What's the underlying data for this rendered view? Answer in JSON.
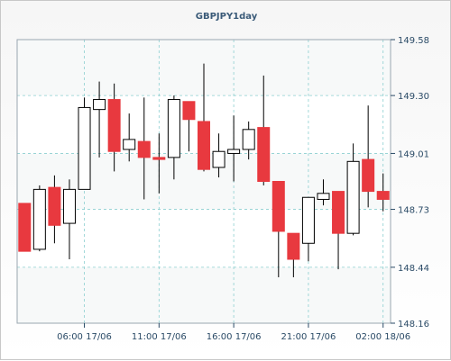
{
  "chart_data": {
    "type": "candlestick",
    "title": "GBPJPY1day",
    "ylim": [
      148.16,
      149.58
    ],
    "y_ticks": [
      "149.58",
      "149.30",
      "149.01",
      "148.73",
      "148.44",
      "148.16"
    ],
    "y_tick_values": [
      149.58,
      149.3,
      149.01,
      148.73,
      148.44,
      148.16
    ],
    "x_ticks": [
      "06:00 17/06",
      "11:00 17/06",
      "16:00 17/06",
      "21:00 17/06",
      "02:00 18/06"
    ],
    "x_tick_index": [
      4.5,
      9.5,
      14.5,
      19.5,
      24.5
    ],
    "grid": true,
    "colors": {
      "up": "#ffffff",
      "down": "#e8393f",
      "frame": "#9aa6b0",
      "grid": "#8ccfd0"
    },
    "candles": [
      {
        "o": 148.76,
        "h": 148.76,
        "l": 148.52,
        "c": 148.52
      },
      {
        "o": 148.53,
        "h": 148.85,
        "l": 148.52,
        "c": 148.83
      },
      {
        "o": 148.84,
        "h": 148.9,
        "l": 148.56,
        "c": 148.65
      },
      {
        "o": 148.66,
        "h": 148.88,
        "l": 148.48,
        "c": 148.83
      },
      {
        "o": 148.83,
        "h": 149.29,
        "l": 148.83,
        "c": 149.24
      },
      {
        "o": 149.23,
        "h": 149.37,
        "l": 148.99,
        "c": 149.28
      },
      {
        "o": 149.28,
        "h": 149.36,
        "l": 148.92,
        "c": 149.02
      },
      {
        "o": 149.03,
        "h": 149.21,
        "l": 148.97,
        "c": 149.08
      },
      {
        "o": 149.07,
        "h": 149.29,
        "l": 148.78,
        "c": 148.99
      },
      {
        "o": 148.99,
        "h": 149.11,
        "l": 148.81,
        "c": 148.98
      },
      {
        "o": 148.99,
        "h": 149.3,
        "l": 148.88,
        "c": 149.28
      },
      {
        "o": 149.27,
        "h": 149.27,
        "l": 149.02,
        "c": 149.18
      },
      {
        "o": 149.17,
        "h": 149.46,
        "l": 148.92,
        "c": 148.93
      },
      {
        "o": 148.94,
        "h": 149.11,
        "l": 148.89,
        "c": 149.02
      },
      {
        "o": 149.01,
        "h": 149.2,
        "l": 148.87,
        "c": 149.03
      },
      {
        "o": 149.03,
        "h": 149.17,
        "l": 148.98,
        "c": 149.13
      },
      {
        "o": 149.14,
        "h": 149.4,
        "l": 148.85,
        "c": 148.87
      },
      {
        "o": 148.87,
        "h": 148.87,
        "l": 148.39,
        "c": 148.62
      },
      {
        "o": 148.61,
        "h": 148.61,
        "l": 148.39,
        "c": 148.48
      },
      {
        "o": 148.56,
        "h": 148.79,
        "l": 148.47,
        "c": 148.79
      },
      {
        "o": 148.78,
        "h": 148.88,
        "l": 148.75,
        "c": 148.81
      },
      {
        "o": 148.82,
        "h": 148.82,
        "l": 148.43,
        "c": 148.61
      },
      {
        "o": 148.61,
        "h": 149.06,
        "l": 148.6,
        "c": 148.97
      },
      {
        "o": 148.98,
        "h": 149.25,
        "l": 148.74,
        "c": 148.82
      },
      {
        "o": 148.82,
        "h": 148.91,
        "l": 148.72,
        "c": 148.78
      }
    ]
  }
}
